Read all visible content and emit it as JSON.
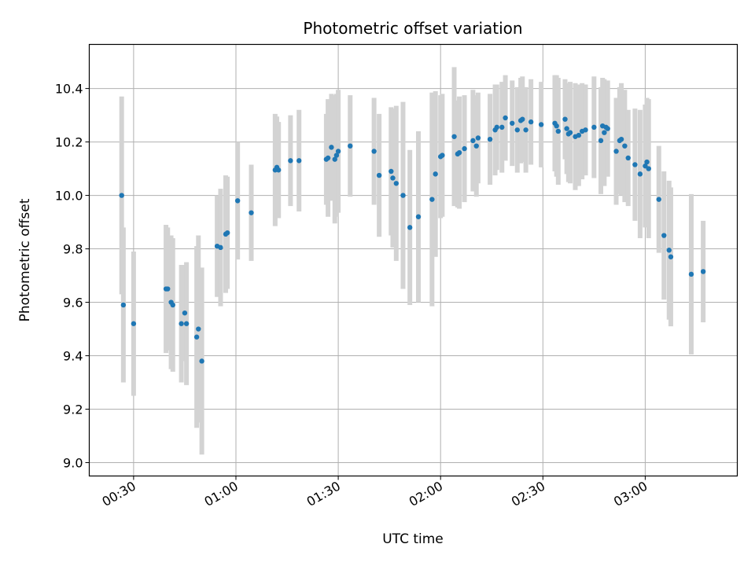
{
  "chart_data": {
    "type": "scatter",
    "title": "Photometric offset variation",
    "xlabel": "UTC time",
    "ylabel": "Photometric offset",
    "grid": true,
    "xlim": [
      "00:17:00",
      "03:27:00"
    ],
    "ylim": [
      8.95,
      10.565
    ],
    "x_ticks": [
      "00:30",
      "01:00",
      "01:30",
      "02:00",
      "02:30",
      "03:00"
    ],
    "y_ticks": [
      "9.0",
      "9.2",
      "9.4",
      "9.6",
      "9.8",
      "10.0",
      "10.2",
      "10.4"
    ],
    "colors": {
      "point": "#1f77b4",
      "error_bar": "#d3d3d3",
      "grid": "#b0b0b0"
    },
    "series": [
      {
        "x": [
          "00:26:30",
          "00:27:00",
          "00:30:00",
          "00:39:30",
          "00:40:00",
          "00:41:00",
          "00:41:30",
          "00:44:00",
          "00:45:00",
          "00:45:30",
          "00:48:30",
          "00:49:00",
          "00:50:00",
          "00:54:30",
          "00:55:30",
          "00:57:00",
          "00:57:30",
          "01:00:30",
          "01:04:30",
          "01:11:30",
          "01:12:00",
          "01:12:30",
          "01:16:00",
          "01:18:30",
          "01:26:30",
          "01:27:00",
          "01:28:00",
          "01:29:00",
          "01:29:30",
          "01:30:00",
          "01:33:30",
          "01:40:30",
          "01:42:00",
          "01:45:30",
          "01:46:00",
          "01:47:00",
          "01:49:00",
          "01:51:00",
          "01:53:30",
          "01:57:30",
          "01:58:30",
          "02:00:00",
          "02:00:30",
          "02:04:00",
          "02:05:00",
          "02:05:30",
          "02:07:00",
          "02:09:30",
          "02:10:30",
          "02:11:00",
          "02:14:30",
          "02:16:00",
          "02:16:30",
          "02:18:00",
          "02:19:00",
          "02:21:00",
          "02:22:30",
          "02:23:30",
          "02:24:00",
          "02:25:00",
          "02:26:30",
          "02:29:30",
          "02:33:30",
          "02:34:00",
          "02:34:30",
          "02:36:30",
          "02:37:00",
          "02:37:30",
          "02:38:00",
          "02:39:30",
          "02:40:30",
          "02:41:30",
          "02:42:30",
          "02:45:00",
          "02:47:00",
          "02:47:30",
          "02:48:00",
          "02:48:30",
          "02:49:00",
          "02:51:30",
          "02:52:30",
          "02:53:00",
          "02:54:00",
          "02:55:00",
          "02:57:00",
          "02:58:30",
          "03:00:00",
          "03:00:30",
          "03:01:00",
          "03:04:00",
          "03:05:30",
          "03:07:00",
          "03:07:30",
          "03:13:30",
          "03:17:00"
        ],
        "y": [
          10.0,
          9.59,
          9.52,
          9.65,
          9.65,
          9.6,
          9.59,
          9.52,
          9.56,
          9.52,
          9.47,
          9.5,
          9.38,
          9.81,
          9.805,
          9.855,
          9.86,
          9.98,
          9.935,
          10.095,
          10.105,
          10.095,
          10.13,
          10.13,
          10.135,
          10.14,
          10.18,
          10.135,
          10.15,
          10.165,
          10.185,
          10.165,
          10.075,
          10.09,
          10.065,
          10.045,
          10.0,
          9.88,
          9.92,
          9.985,
          10.08,
          10.145,
          10.15,
          10.22,
          10.155,
          10.16,
          10.175,
          10.205,
          10.185,
          10.215,
          10.21,
          10.245,
          10.255,
          10.255,
          10.29,
          10.27,
          10.245,
          10.28,
          10.285,
          10.245,
          10.275,
          10.265,
          10.27,
          10.26,
          10.24,
          10.285,
          10.25,
          10.23,
          10.235,
          10.22,
          10.225,
          10.24,
          10.245,
          10.255,
          10.205,
          10.26,
          10.235,
          10.255,
          10.25,
          10.165,
          10.205,
          10.21,
          10.185,
          10.14,
          10.115,
          10.08,
          10.11,
          10.125,
          10.1,
          9.985,
          9.85,
          9.795,
          9.77,
          9.705,
          9.715
        ],
        "error": [
          0.37,
          0.29,
          0.27,
          0.24,
          0.23,
          0.25,
          0.25,
          0.22,
          0.18,
          0.23,
          0.34,
          0.35,
          0.35,
          0.19,
          0.22,
          0.22,
          0.21,
          0.22,
          0.18,
          0.21,
          0.19,
          0.18,
          0.17,
          0.19,
          0.17,
          0.22,
          0.2,
          0.24,
          0.23,
          0.23,
          0.19,
          0.2,
          0.23,
          0.24,
          0.26,
          0.29,
          0.35,
          0.29,
          0.32,
          0.4,
          0.31,
          0.23,
          0.23,
          0.26,
          0.2,
          0.21,
          0.2,
          0.19,
          0.19,
          0.17,
          0.17,
          0.17,
          0.16,
          0.17,
          0.16,
          0.16,
          0.16,
          0.16,
          0.16,
          0.16,
          0.16,
          0.16,
          0.18,
          0.19,
          0.2,
          0.15,
          0.17,
          0.18,
          0.19,
          0.2,
          0.19,
          0.18,
          0.17,
          0.19,
          0.2,
          0.18,
          0.2,
          0.17,
          0.18,
          0.2,
          0.2,
          0.21,
          0.21,
          0.18,
          0.21,
          0.24,
          0.23,
          0.24,
          0.26,
          0.2,
          0.24,
          0.26,
          0.26,
          0.3,
          0.19
        ]
      }
    ]
  }
}
